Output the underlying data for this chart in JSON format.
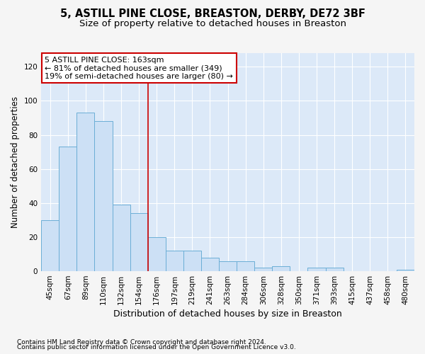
{
  "title": "5, ASTILL PINE CLOSE, BREASTON, DERBY, DE72 3BF",
  "subtitle": "Size of property relative to detached houses in Breaston",
  "xlabel": "Distribution of detached houses by size in Breaston",
  "ylabel": "Number of detached properties",
  "categories": [
    "45sqm",
    "67sqm",
    "89sqm",
    "110sqm",
    "132sqm",
    "154sqm",
    "176sqm",
    "197sqm",
    "219sqm",
    "241sqm",
    "263sqm",
    "284sqm",
    "306sqm",
    "328sqm",
    "350sqm",
    "371sqm",
    "393sqm",
    "415sqm",
    "437sqm",
    "458sqm",
    "480sqm"
  ],
  "values": [
    30,
    73,
    93,
    88,
    39,
    34,
    20,
    12,
    12,
    8,
    6,
    6,
    2,
    3,
    0,
    2,
    2,
    0,
    0,
    0,
    1
  ],
  "bar_color": "#cce0f5",
  "bar_edge_color": "#6baed6",
  "background_color": "#dce9f8",
  "grid_color": "#ffffff",
  "annotation_line1": "5 ASTILL PINE CLOSE: 163sqm",
  "annotation_line2": "← 81% of detached houses are smaller (349)",
  "annotation_line3": "19% of semi-detached houses are larger (80) →",
  "annotation_box_color": "#ffffff",
  "annotation_box_edge_color": "#cc0000",
  "red_line_x": 5.5,
  "ylim": [
    0,
    128
  ],
  "yticks": [
    0,
    20,
    40,
    60,
    80,
    100,
    120
  ],
  "footer1": "Contains HM Land Registry data © Crown copyright and database right 2024.",
  "footer2": "Contains public sector information licensed under the Open Government Licence v3.0.",
  "title_fontsize": 10.5,
  "subtitle_fontsize": 9.5,
  "tick_fontsize": 7.5,
  "ylabel_fontsize": 8.5,
  "xlabel_fontsize": 9,
  "annotation_fontsize": 8,
  "footer_fontsize": 6.5,
  "fig_bg": "#f5f5f5"
}
